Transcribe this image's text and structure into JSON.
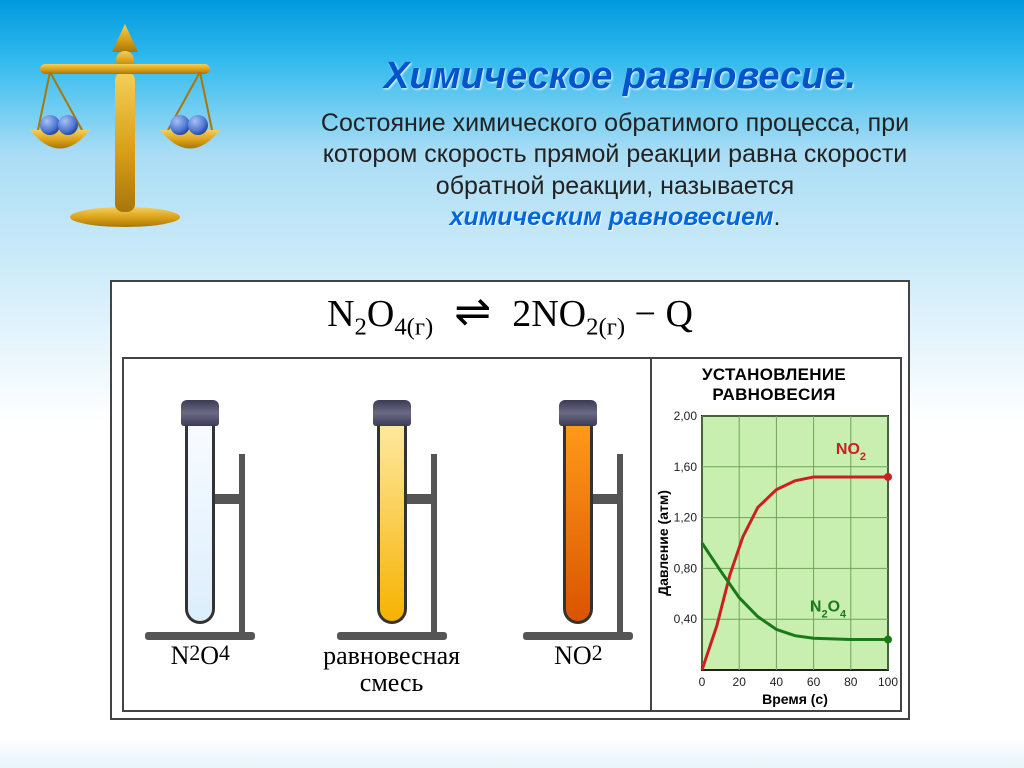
{
  "title": "Химическое равновесие.",
  "body_text": {
    "line1": "Состояние химического обратимого процесса, при",
    "line2": "котором скорость прямой реакции равна скорости",
    "line3": "обратной реакции, называется",
    "highlight": "химическим равновесием",
    "period": "."
  },
  "equation": {
    "left": "N",
    "l_sub1": "2",
    "left2": "O",
    "l_sub2": "4",
    "phase1": "(г)",
    "coeff": "2",
    "right": "NO",
    "r_sub": "2",
    "phase2": "(г)",
    "tail": " − Q"
  },
  "tubes": [
    {
      "name": "tube-n2o4",
      "fill_top": "#f8fbff",
      "fill_bot": "#dceefc",
      "label_html": "N<sub>2</sub>O<sub>4</sub>"
    },
    {
      "name": "tube-mix",
      "fill_top": "#ffe9a0",
      "fill_bot": "#f6b200",
      "label_html": "равновесная<br>смесь"
    },
    {
      "name": "tube-no2",
      "fill_top": "#ff9a1a",
      "fill_bot": "#d95400",
      "label_html": "NO<sub>2</sub>"
    }
  ],
  "chart": {
    "title": "УСТАНОВЛЕНИЕ РАВНОВЕСИЯ",
    "bg": "#c8efb0",
    "grid_color": "#6fa35a",
    "axis_color": "#222",
    "xlim": [
      0,
      100
    ],
    "ylim": [
      0,
      2.0
    ],
    "xticks": [
      0,
      20,
      40,
      60,
      80,
      100
    ],
    "yticks": [
      0.4,
      0.8,
      1.2,
      1.6,
      2.0
    ],
    "ytick_labels": [
      "0,40",
      "0,80",
      "1,20",
      "1,60",
      "2,00"
    ],
    "xlabel": "Время (с)",
    "ylabel": "Давление (атм)",
    "fontsize_ticks": 12,
    "fontsize_labels": 14,
    "series": {
      "no2": {
        "label": "NO",
        "label_sub": "2",
        "color": "#cc2020",
        "line_width": 3,
        "points": [
          [
            0,
            0
          ],
          [
            8,
            0.35
          ],
          [
            15,
            0.75
          ],
          [
            22,
            1.05
          ],
          [
            30,
            1.28
          ],
          [
            40,
            1.42
          ],
          [
            50,
            1.49
          ],
          [
            60,
            1.52
          ],
          [
            80,
            1.52
          ],
          [
            100,
            1.52
          ]
        ],
        "endpoint_marker": [
          100,
          1.52
        ]
      },
      "n2o4": {
        "label": "N",
        "label_sub1": "2",
        "label2": "O",
        "label_sub2": "4",
        "color": "#1a7a1a",
        "line_width": 3,
        "points": [
          [
            0,
            1.0
          ],
          [
            10,
            0.78
          ],
          [
            20,
            0.57
          ],
          [
            30,
            0.42
          ],
          [
            40,
            0.32
          ],
          [
            50,
            0.27
          ],
          [
            60,
            0.25
          ],
          [
            80,
            0.24
          ],
          [
            100,
            0.24
          ]
        ],
        "endpoint_marker": [
          100,
          0.24
        ]
      }
    }
  },
  "scale": {
    "gold": "#d9a018",
    "gold_dark": "#a8760a",
    "ball_color": "#4f78d6",
    "ball_highlight": "#a8c0f2"
  }
}
